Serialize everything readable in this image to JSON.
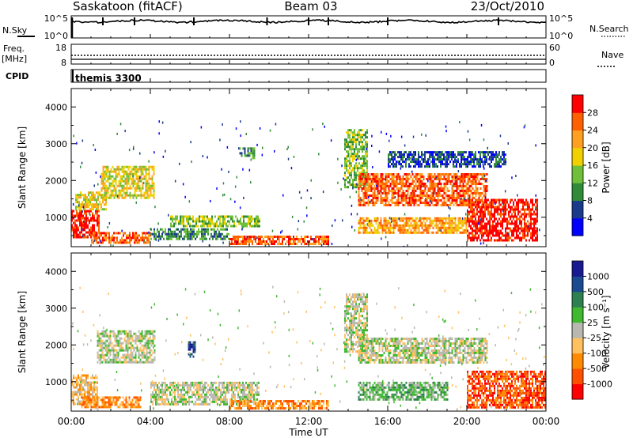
{
  "header": {
    "station": "Saskatoon (fitACF)",
    "beam": "Beam 03",
    "date": "23/Oct/2010"
  },
  "top_panels": {
    "nsky_label": "N.Sky",
    "nsky_ticks": [
      "10^5",
      "10^0"
    ],
    "nsearch_label": "N.Search",
    "nsearch_ticks": [
      "10^5",
      "10^0"
    ],
    "freq_label": "Freq.",
    "freq_unit": "[MHz]",
    "freq_ticks": [
      "18",
      "8"
    ],
    "nave_label": "Nave",
    "nave_ticks": [
      "60",
      "0"
    ],
    "cpid_label": "CPID",
    "cpid_value": "themis 3300"
  },
  "colors": {
    "power_scale": [
      "#0000ff",
      "#1a3a8c",
      "#2f8a3a",
      "#6fbf3a",
      "#f0d000",
      "#ffa020",
      "#ff6000",
      "#ff0000"
    ],
    "velocity_scale": [
      "#ff0000",
      "#ff5000",
      "#ff8a00",
      "#ffc060",
      "#b8b8b0",
      "#40b830",
      "#2f8050",
      "#1a4a90",
      "#1a1a90"
    ]
  },
  "chart_data": [
    {
      "type": "heatmap",
      "quantity": "power",
      "xlabel": "",
      "ylabel": "Slant Range [km]",
      "ylim": [
        200,
        4500
      ],
      "y_ticks": [
        1000,
        2000,
        3000,
        4000
      ],
      "x_ticks_hours": [
        0,
        4,
        8,
        12,
        16,
        20,
        24
      ],
      "colorbar_label": "Power [dB]",
      "colorbar_ticks": [
        "4",
        "8",
        "12",
        "16",
        "20",
        "24",
        "28"
      ],
      "regions": [
        {
          "t0": 0.0,
          "t1": 1.4,
          "r0": 450,
          "r1": 1200,
          "level": 7
        },
        {
          "t0": 0.2,
          "t1": 1.8,
          "r0": 1200,
          "r1": 1700,
          "level": 4
        },
        {
          "t0": 1.5,
          "t1": 4.2,
          "r0": 1500,
          "r1": 2400,
          "level": 4
        },
        {
          "t0": 1.0,
          "t1": 4.0,
          "r0": 300,
          "r1": 600,
          "level": 6
        },
        {
          "t0": 4.0,
          "t1": 8.0,
          "r0": 400,
          "r1": 700,
          "level": 2
        },
        {
          "t0": 5.0,
          "t1": 9.5,
          "r0": 750,
          "r1": 1050,
          "level": 3
        },
        {
          "t0": 8.5,
          "t1": 9.3,
          "r0": 2600,
          "r1": 2900,
          "level": 2
        },
        {
          "t0": 8.0,
          "t1": 13.0,
          "r0": 250,
          "r1": 500,
          "level": 6
        },
        {
          "t0": 13.8,
          "t1": 15.0,
          "r0": 1800,
          "r1": 3400,
          "level": 3
        },
        {
          "t0": 14.5,
          "t1": 21.0,
          "r0": 1300,
          "r1": 2200,
          "level": 6
        },
        {
          "t0": 14.5,
          "t1": 20.0,
          "r0": 600,
          "r1": 1000,
          "level": 5
        },
        {
          "t0": 20.0,
          "t1": 23.6,
          "r0": 400,
          "r1": 1500,
          "level": 7
        },
        {
          "t0": 16.0,
          "t1": 22.0,
          "r0": 2400,
          "r1": 2800,
          "level": 1
        }
      ]
    },
    {
      "type": "heatmap",
      "quantity": "velocity",
      "xlabel": "Time UT",
      "ylabel": "Slant Range [km]",
      "ylim": [
        200,
        4500
      ],
      "y_ticks": [
        1000,
        2000,
        3000,
        4000
      ],
      "x_ticks_hours": [
        0,
        4,
        8,
        12,
        16,
        20,
        24
      ],
      "x_tick_labels": [
        "00:00",
        "04:00",
        "08:00",
        "12:00",
        "16:00",
        "20:00",
        "00:00"
      ],
      "colorbar_label": "Velocity [m s⁻¹]",
      "colorbar_ticks": [
        "-1000",
        "-500",
        "-100",
        "-25",
        "25",
        "100",
        "500",
        "1000"
      ],
      "regions": [
        {
          "t0": 0.0,
          "t1": 1.3,
          "r0": 400,
          "r1": 1200,
          "level": 3
        },
        {
          "t0": 1.3,
          "t1": 4.2,
          "r0": 1500,
          "r1": 2400,
          "level": 4
        },
        {
          "t0": 0.5,
          "t1": 3.5,
          "r0": 300,
          "r1": 600,
          "level": 2
        },
        {
          "t0": 4.0,
          "t1": 9.5,
          "r0": 400,
          "r1": 1000,
          "level": 4
        },
        {
          "t0": 8.0,
          "t1": 13.0,
          "r0": 250,
          "r1": 500,
          "level": 2
        },
        {
          "t0": 13.8,
          "t1": 15.0,
          "r0": 1800,
          "r1": 3400,
          "level": 4
        },
        {
          "t0": 14.5,
          "t1": 21.0,
          "r0": 1500,
          "r1": 2200,
          "level": 4
        },
        {
          "t0": 14.5,
          "t1": 19.0,
          "r0": 500,
          "r1": 1000,
          "level": 5
        },
        {
          "t0": 20.0,
          "t1": 24.0,
          "r0": 300,
          "r1": 1300,
          "level": 1
        },
        {
          "t0": 5.9,
          "t1": 6.3,
          "r0": 1700,
          "r1": 2100,
          "level": 7
        }
      ]
    }
  ]
}
